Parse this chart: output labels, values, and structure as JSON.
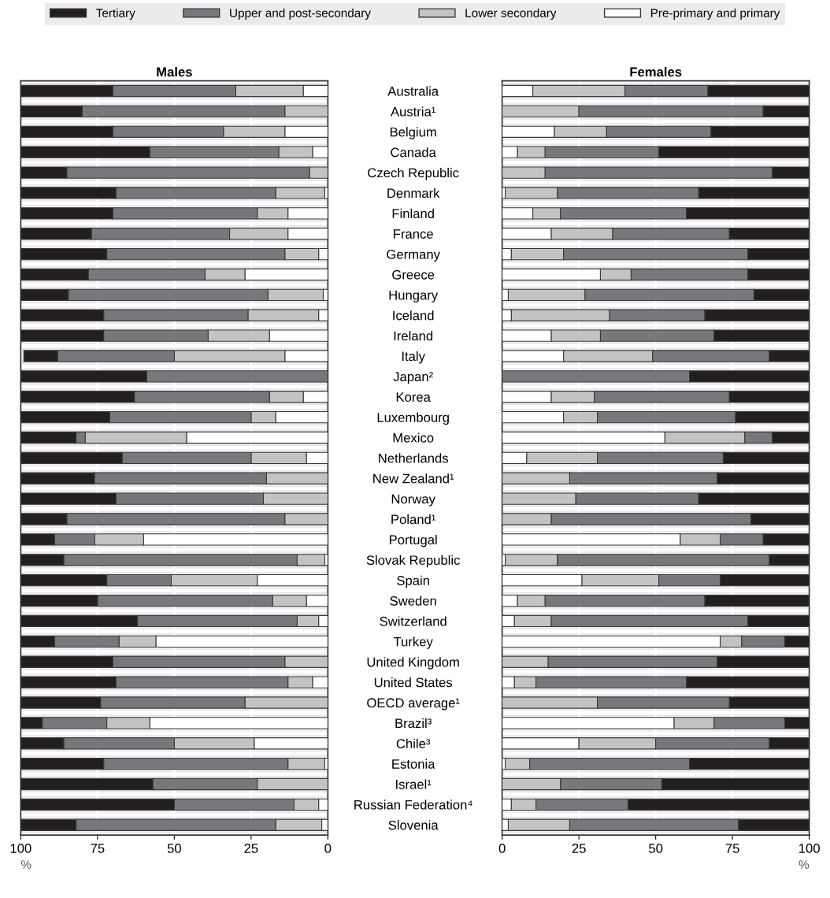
{
  "chart_data": [
    {
      "type": "bar",
      "orientation": "horizontal",
      "stacked": true,
      "title": "Males",
      "xlabel": "%",
      "xlim": [
        100,
        0
      ],
      "xticks": [
        100,
        75,
        50,
        25,
        0
      ],
      "grid": "x",
      "legend": "top",
      "tick_labels": "xy",
      "categories": [
        "Australia",
        "Austria¹",
        "Belgium",
        "Canada",
        "Czech Republic",
        "Denmark",
        "Finland",
        "France",
        "Germany",
        "Greece",
        "Hungary",
        "Iceland",
        "Ireland",
        "Italy",
        "Japan²",
        "Korea",
        "Luxembourg",
        "Mexico",
        "Netherlands",
        "New Zealand¹",
        "Norway",
        "Poland¹",
        "Portugal",
        "Slovak Republic",
        "Spain",
        "Sweden",
        "Switzerland",
        "Turkey",
        "United Kingdom",
        "United States",
        "OECD average¹",
        "Brazil³",
        "Chile³",
        "Estonia",
        "Israel¹",
        "Russian Federation⁴",
        "Slovenia"
      ],
      "series": [
        {
          "name": "Pre-primary and primary",
          "color": "#ffffff",
          "values": [
            8,
            0,
            14,
            5,
            0,
            1,
            13,
            13,
            3,
            27,
            1.5,
            3,
            19,
            14,
            0,
            8,
            17,
            46,
            7,
            0,
            0,
            0,
            60,
            1,
            23,
            7,
            3,
            56,
            0,
            5,
            0,
            58,
            24,
            1,
            0,
            3,
            2
          ]
        },
        {
          "name": "Lower secondary",
          "color": "#c2c3c5",
          "values": [
            22,
            14,
            20,
            11,
            6,
            16,
            10,
            19,
            11,
            13,
            18,
            23,
            20,
            36,
            0,
            11,
            8,
            33,
            18,
            20,
            21,
            14,
            16,
            9,
            28,
            11,
            7,
            12,
            14,
            8,
            27,
            14,
            26,
            12,
            23,
            8,
            15
          ]
        },
        {
          "name": "Upper and post-secondary",
          "color": "#77787b",
          "values": [
            40,
            66,
            36,
            42,
            79,
            52,
            47,
            45,
            58,
            38,
            65,
            47,
            34,
            38,
            59,
            44,
            46,
            3,
            42,
            56,
            48,
            71,
            13,
            76,
            21,
            57,
            52,
            21,
            56,
            56,
            47,
            21,
            36,
            60,
            34,
            39,
            65
          ]
        },
        {
          "name": "Tertiary",
          "color": "#231f20",
          "values": [
            30,
            20,
            30,
            42,
            15,
            31,
            30,
            23,
            28,
            22,
            15.5,
            27,
            27,
            11,
            41,
            37,
            29,
            18,
            33,
            24,
            31,
            15,
            11,
            14,
            28,
            25,
            38,
            11,
            30,
            31,
            26,
            7,
            14,
            27,
            43,
            50,
            18
          ]
        }
      ]
    },
    {
      "type": "bar",
      "orientation": "horizontal",
      "stacked": true,
      "title": "Females",
      "xlabel": "%",
      "xlim": [
        0,
        100
      ],
      "xticks": [
        0,
        25,
        50,
        75,
        100
      ],
      "grid": "x",
      "tick_labels": "x",
      "series": [
        {
          "color": "#ffffff",
          "values": [
            10,
            0,
            17,
            5,
            0,
            1,
            10,
            16,
            3,
            32,
            2,
            3,
            16,
            20,
            0,
            16,
            20,
            53,
            8,
            0,
            0,
            0,
            58,
            1,
            26,
            5,
            4,
            71,
            0,
            4,
            0,
            56,
            25,
            1,
            0,
            3,
            2
          ]
        },
        {
          "color": "#c2c3c5",
          "values": [
            30,
            25,
            17,
            9,
            14,
            17,
            9,
            20,
            17,
            10,
            25,
            32,
            16,
            29,
            0,
            14,
            11,
            26,
            23,
            22,
            24,
            16,
            13,
            17,
            25,
            9,
            12,
            7,
            15,
            7,
            31,
            13,
            25,
            8,
            19,
            8,
            20
          ]
        },
        {
          "color": "#77787b",
          "values": [
            27,
            60,
            34,
            37,
            74,
            46,
            41,
            38,
            60,
            38,
            55,
            31,
            37,
            38,
            61,
            44,
            45,
            9,
            41,
            48,
            40,
            65,
            14,
            69,
            20,
            52,
            64,
            14,
            55,
            49,
            43,
            23,
            37,
            52,
            33,
            30,
            55
          ]
        },
        {
          "color": "#231f20",
          "values": [
            33,
            15,
            32,
            49,
            12,
            36,
            40,
            26,
            20,
            20,
            18,
            34,
            31,
            13,
            39,
            26,
            24,
            12,
            28,
            30,
            36,
            19,
            15,
            13,
            29,
            34,
            20,
            8,
            30,
            40,
            26,
            8,
            13,
            39,
            48,
            59,
            23
          ]
        }
      ]
    }
  ]
}
